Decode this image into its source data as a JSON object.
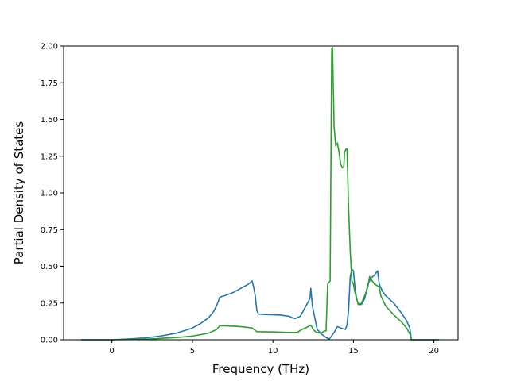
{
  "chart_data": {
    "type": "line",
    "title": "",
    "xlabel": "Frequency (THz)",
    "ylabel": "Partial Density of States",
    "xlim": [
      -3.0,
      21.5
    ],
    "ylim": [
      0.0,
      2.0
    ],
    "x_ticks": [
      0,
      5,
      10,
      15,
      20
    ],
    "x_tick_labels": [
      "0",
      "5",
      "10",
      "15",
      "20"
    ],
    "y_ticks": [
      0.0,
      0.25,
      0.5,
      0.75,
      1.0,
      1.25,
      1.5,
      1.75,
      2.0
    ],
    "y_tick_labels": [
      "0.00",
      "0.25",
      "0.50",
      "0.75",
      "1.00",
      "1.25",
      "1.50",
      "1.75",
      "2.00"
    ],
    "grid": false,
    "legend": null,
    "series": [
      {
        "color": "#1f77b4",
        "points": [
          [
            -1.9,
            0.0
          ],
          [
            0.0,
            0.0
          ],
          [
            1.0,
            0.005
          ],
          [
            2.0,
            0.012
          ],
          [
            3.0,
            0.025
          ],
          [
            4.0,
            0.045
          ],
          [
            5.0,
            0.08
          ],
          [
            5.5,
            0.11
          ],
          [
            6.0,
            0.15
          ],
          [
            6.3,
            0.19
          ],
          [
            6.5,
            0.23
          ],
          [
            6.7,
            0.29
          ],
          [
            7.0,
            0.3
          ],
          [
            7.5,
            0.32
          ],
          [
            8.0,
            0.35
          ],
          [
            8.5,
            0.38
          ],
          [
            8.7,
            0.4
          ],
          [
            8.8,
            0.36
          ],
          [
            8.9,
            0.3
          ],
          [
            9.0,
            0.2
          ],
          [
            9.1,
            0.175
          ],
          [
            9.5,
            0.172
          ],
          [
            10.5,
            0.168
          ],
          [
            11.0,
            0.16
          ],
          [
            11.2,
            0.15
          ],
          [
            11.4,
            0.145
          ],
          [
            11.7,
            0.16
          ],
          [
            11.9,
            0.2
          ],
          [
            12.1,
            0.24
          ],
          [
            12.3,
            0.28
          ],
          [
            12.35,
            0.35
          ],
          [
            12.45,
            0.23
          ],
          [
            12.6,
            0.15
          ],
          [
            12.75,
            0.07
          ],
          [
            13.0,
            0.04
          ],
          [
            13.3,
            0.015
          ],
          [
            13.5,
            0.005
          ],
          [
            13.6,
            0.02
          ],
          [
            13.8,
            0.05
          ],
          [
            14.0,
            0.09
          ],
          [
            14.2,
            0.08
          ],
          [
            14.5,
            0.07
          ],
          [
            14.6,
            0.1
          ],
          [
            14.7,
            0.2
          ],
          [
            14.8,
            0.43
          ],
          [
            14.9,
            0.48
          ],
          [
            15.0,
            0.47
          ],
          [
            15.1,
            0.35
          ],
          [
            15.2,
            0.28
          ],
          [
            15.3,
            0.24
          ],
          [
            15.5,
            0.24
          ],
          [
            15.7,
            0.28
          ],
          [
            15.9,
            0.38
          ],
          [
            16.1,
            0.42
          ],
          [
            16.3,
            0.44
          ],
          [
            16.5,
            0.47
          ],
          [
            16.6,
            0.38
          ],
          [
            16.8,
            0.33
          ],
          [
            17.0,
            0.3
          ],
          [
            17.5,
            0.25
          ],
          [
            18.0,
            0.18
          ],
          [
            18.3,
            0.13
          ],
          [
            18.5,
            0.08
          ],
          [
            18.6,
            0.0
          ],
          [
            20.3,
            0.0
          ]
        ]
      },
      {
        "color": "#2ca02c",
        "points": [
          [
            -1.9,
            0.0
          ],
          [
            0.0,
            0.0
          ],
          [
            2.0,
            0.003
          ],
          [
            4.0,
            0.015
          ],
          [
            5.0,
            0.025
          ],
          [
            6.0,
            0.045
          ],
          [
            6.5,
            0.07
          ],
          [
            6.7,
            0.095
          ],
          [
            7.0,
            0.095
          ],
          [
            8.0,
            0.09
          ],
          [
            8.7,
            0.08
          ],
          [
            9.0,
            0.055
          ],
          [
            10.0,
            0.053
          ],
          [
            11.0,
            0.05
          ],
          [
            11.5,
            0.05
          ],
          [
            11.8,
            0.07
          ],
          [
            12.2,
            0.09
          ],
          [
            12.35,
            0.1
          ],
          [
            12.5,
            0.07
          ],
          [
            12.7,
            0.05
          ],
          [
            13.0,
            0.045
          ],
          [
            13.2,
            0.06
          ],
          [
            13.3,
            0.06
          ],
          [
            13.4,
            0.38
          ],
          [
            13.55,
            0.4
          ],
          [
            13.65,
            1.98
          ],
          [
            13.7,
            1.99
          ],
          [
            13.8,
            1.45
          ],
          [
            13.9,
            1.32
          ],
          [
            14.0,
            1.34
          ],
          [
            14.1,
            1.28
          ],
          [
            14.2,
            1.2
          ],
          [
            14.3,
            1.17
          ],
          [
            14.4,
            1.18
          ],
          [
            14.45,
            1.28
          ],
          [
            14.55,
            1.3
          ],
          [
            14.6,
            1.3
          ],
          [
            14.7,
            0.9
          ],
          [
            14.8,
            0.6
          ],
          [
            14.9,
            0.4
          ],
          [
            15.0,
            0.38
          ],
          [
            15.1,
            0.32
          ],
          [
            15.3,
            0.24
          ],
          [
            15.5,
            0.25
          ],
          [
            15.7,
            0.3
          ],
          [
            15.8,
            0.33
          ],
          [
            15.9,
            0.36
          ],
          [
            16.0,
            0.43
          ],
          [
            16.1,
            0.41
          ],
          [
            16.3,
            0.38
          ],
          [
            16.6,
            0.36
          ],
          [
            16.7,
            0.3
          ],
          [
            17.0,
            0.23
          ],
          [
            17.5,
            0.17
          ],
          [
            18.0,
            0.12
          ],
          [
            18.3,
            0.08
          ],
          [
            18.5,
            0.04
          ],
          [
            18.6,
            0.0
          ],
          [
            20.3,
            0.0
          ]
        ]
      }
    ]
  }
}
